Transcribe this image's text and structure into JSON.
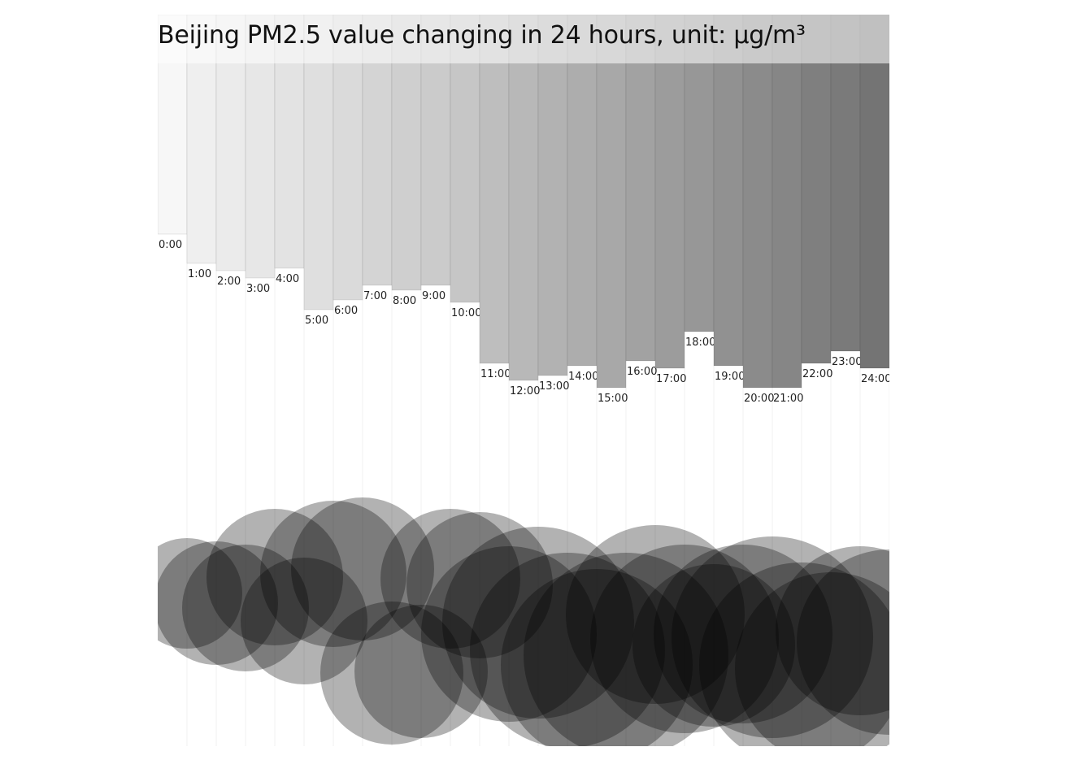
{
  "title": "Beijing PM2.5 value changing in 24 hours, unit: μg/m³",
  "chart_data": [
    {
      "type": "bar",
      "title": "Beijing PM2.5 value changing in 24 hours, unit: μg/m³",
      "categories": [
        "0:00",
        "1:00",
        "2:00",
        "3:00",
        "4:00",
        "5:00",
        "6:00",
        "7:00",
        "8:00",
        "9:00",
        "10:00",
        "11:00",
        "12:00",
        "13:00",
        "14:00",
        "15:00",
        "16:00",
        "17:00",
        "18:00",
        "19:00",
        "20:00",
        "21:00",
        "22:00",
        "23:00",
        "24:00"
      ],
      "values": [
        270,
        306,
        315,
        324,
        312,
        363,
        351,
        333,
        339,
        333,
        354,
        429,
        450,
        444,
        432,
        459,
        426,
        435,
        390,
        432,
        459,
        459,
        429,
        414,
        435
      ],
      "colors": [
        "#f7f7f7",
        "#efefef",
        "#ebebeb",
        "#e7e7e7",
        "#e3e3e3",
        "#dfdfdf",
        "#dadada",
        "#d4d4d4",
        "#cfcfcf",
        "#cbcbcb",
        "#c6c6c6",
        "#bebebe",
        "#b8b8b8",
        "#b2b2b2",
        "#adadad",
        "#a8a8a8",
        "#a2a2a2",
        "#9c9c9c",
        "#979797",
        "#919191",
        "#8b8b8b",
        "#868686",
        "#7f7f7f",
        "#7a7a7a",
        "#747474"
      ],
      "ylim": [
        0,
        900
      ]
    },
    {
      "type": "scatter",
      "categories": [
        "0:00",
        "1:00",
        "2:00",
        "3:00",
        "4:00",
        "5:00",
        "6:00",
        "7:00",
        "8:00",
        "9:00",
        "10:00",
        "11:00",
        "12:00",
        "13:00",
        "14:00",
        "15:00",
        "16:00",
        "17:00",
        "18:00",
        "19:00",
        "20:00",
        "21:00",
        "22:00",
        "23:00",
        "24:00"
      ],
      "x": [
        0,
        1,
        2,
        3,
        4,
        5,
        6,
        7,
        8,
        9,
        10,
        11,
        12,
        13,
        14,
        15,
        16,
        17,
        18,
        19,
        20,
        21,
        22,
        23,
        24
      ],
      "y": [
        712,
        724,
        730,
        692,
        746,
        688,
        682,
        810,
        808,
        694,
        702,
        762,
        748,
        782,
        800,
        788,
        738,
        768,
        776,
        762,
        766,
        800,
        804,
        758,
        772
      ],
      "size": [
        68,
        76,
        78,
        84,
        78,
        90,
        88,
        88,
        82,
        86,
        90,
        108,
        118,
        120,
        118,
        126,
        110,
        116,
        100,
        110,
        124,
        126,
        118,
        104,
        114
      ],
      "fill": "#000000",
      "opacity": 0.3
    }
  ]
}
